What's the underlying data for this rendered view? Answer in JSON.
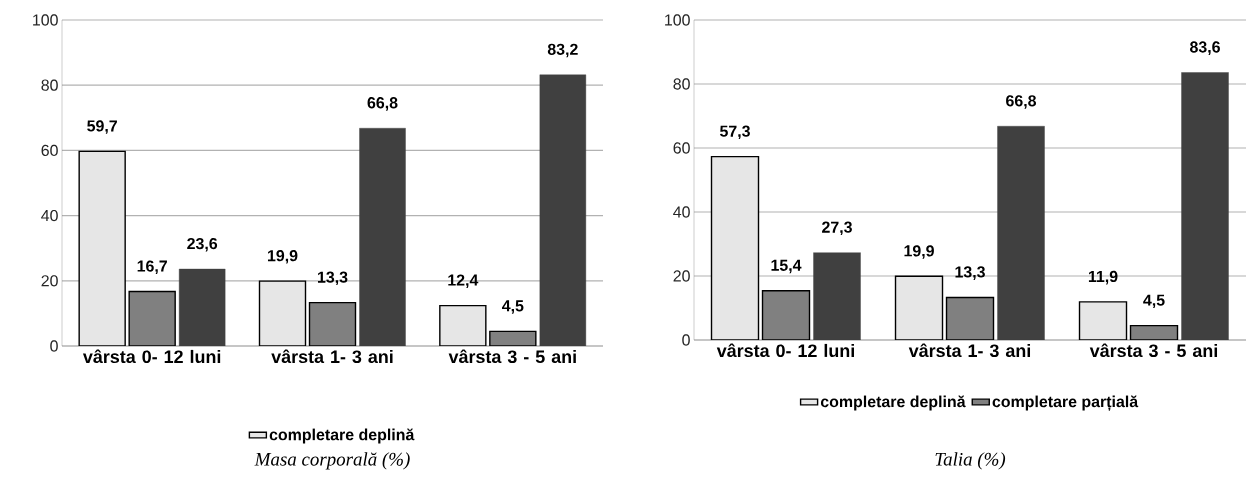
{
  "chart_data": [
    {
      "type": "bar",
      "title": "Masa corporală (%)",
      "categories": [
        "vârsta 0- 12 luni",
        "vârsta 1- 3 ani",
        "vârsta 3 - 5 ani"
      ],
      "ylim": [
        0,
        100
      ],
      "yticks": [
        0,
        20,
        40,
        60,
        80,
        100
      ],
      "grid": "y",
      "legend": "bottom",
      "series": [
        {
          "name": "completare deplină",
          "color": "#e6e6e6",
          "values": [
            59.7,
            19.9,
            12.4
          ],
          "value_labels": [
            "59,7",
            "19,9",
            "12,4"
          ]
        },
        {
          "color": "#808080",
          "values": [
            16.7,
            13.3,
            4.5
          ],
          "value_labels": [
            "16,7",
            "13,3",
            "4,5"
          ]
        },
        {
          "color": "#404040",
          "values": [
            23.6,
            66.8,
            83.2
          ],
          "value_labels": [
            "23,6",
            "66,8",
            "83,2"
          ]
        }
      ]
    },
    {
      "type": "bar",
      "title": "Talia (%)",
      "categories": [
        "vârsta 0- 12 luni",
        "vârsta 1- 3 ani",
        "vârsta 3 - 5 ani"
      ],
      "ylim": [
        0,
        100
      ],
      "yticks": [
        0,
        20,
        40,
        60,
        80,
        100
      ],
      "grid": "y",
      "legend": "bottom",
      "series": [
        {
          "name": "completare deplină",
          "color": "#e6e6e6",
          "values": [
            57.3,
            19.9,
            11.9
          ],
          "value_labels": [
            "57,3",
            "19,9",
            "11,9"
          ]
        },
        {
          "name": "completare parțială",
          "color": "#808080",
          "values": [
            15.4,
            13.3,
            4.5
          ],
          "value_labels": [
            "15,4",
            "13,3",
            "4,5"
          ]
        },
        {
          "color": "#404040",
          "values": [
            27.3,
            66.8,
            83.6
          ],
          "value_labels": [
            "27,3",
            "66,8",
            "83,6"
          ]
        }
      ]
    }
  ]
}
